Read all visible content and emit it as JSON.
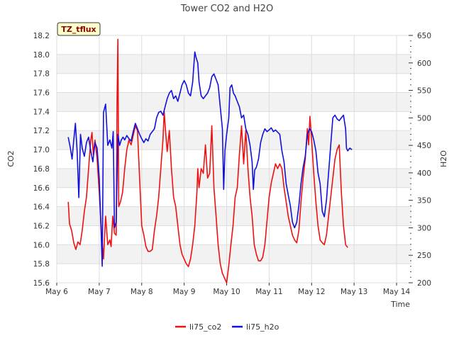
{
  "chart_data": {
    "type": "line",
    "title": "Tower CO2 and H2O",
    "xlabel": "Time",
    "ylabel_left": "CO2",
    "ylabel_right": "H2O",
    "badge": "TZ_tflux",
    "x_range": [
      6.0,
      14.35
    ],
    "ylim_left": [
      15.6,
      18.2
    ],
    "ylim_right": [
      200,
      650
    ],
    "x_ticks": [
      {
        "value": 6,
        "label": "May 6"
      },
      {
        "value": 7,
        "label": "May 7"
      },
      {
        "value": 8,
        "label": "May 8"
      },
      {
        "value": 9,
        "label": "May 9"
      },
      {
        "value": 10,
        "label": "May 10"
      },
      {
        "value": 11,
        "label": "May 11"
      },
      {
        "value": 12,
        "label": "May 12"
      },
      {
        "value": 13,
        "label": "May 13"
      },
      {
        "value": 14,
        "label": "May 14"
      }
    ],
    "y_ticks_left": [
      "15.6",
      "15.8",
      "16.0",
      "16.2",
      "16.4",
      "16.6",
      "16.8",
      "17.0",
      "17.2",
      "17.4",
      "17.6",
      "17.8",
      "18.0",
      "18.2"
    ],
    "y_ticks_right": [
      "200",
      "250",
      "300",
      "350",
      "400",
      "450",
      "500",
      "550",
      "600",
      "650"
    ],
    "grid": true,
    "legend_position": "bottom-center",
    "series": [
      {
        "name": "li75_co2",
        "axis": "left",
        "color": "#ee1111",
        "points": [
          [
            6.27,
            16.45
          ],
          [
            6.3,
            16.22
          ],
          [
            6.35,
            16.15
          ],
          [
            6.4,
            16.02
          ],
          [
            6.45,
            15.95
          ],
          [
            6.5,
            16.03
          ],
          [
            6.55,
            16.0
          ],
          [
            6.6,
            16.15
          ],
          [
            6.65,
            16.35
          ],
          [
            6.7,
            16.5
          ],
          [
            6.75,
            16.8
          ],
          [
            6.8,
            17.1
          ],
          [
            6.83,
            17.18
          ],
          [
            6.86,
            16.95
          ],
          [
            6.9,
            17.1
          ],
          [
            6.95,
            16.9
          ],
          [
            7.0,
            16.55
          ],
          [
            7.05,
            16.15
          ],
          [
            7.1,
            15.85
          ],
          [
            7.15,
            16.3
          ],
          [
            7.2,
            16.0
          ],
          [
            7.25,
            16.05
          ],
          [
            7.28,
            15.98
          ],
          [
            7.32,
            16.3
          ],
          [
            7.36,
            16.12
          ],
          [
            7.4,
            16.1
          ],
          [
            7.42,
            17.5
          ],
          [
            7.44,
            18.16
          ],
          [
            7.46,
            16.4
          ],
          [
            7.5,
            16.45
          ],
          [
            7.55,
            16.55
          ],
          [
            7.6,
            16.8
          ],
          [
            7.65,
            17.0
          ],
          [
            7.7,
            17.1
          ],
          [
            7.75,
            17.05
          ],
          [
            7.8,
            17.15
          ],
          [
            7.85,
            17.25
          ],
          [
            7.9,
            17.2
          ],
          [
            7.93,
            16.9
          ],
          [
            7.97,
            16.5
          ],
          [
            8.0,
            16.2
          ],
          [
            8.05,
            16.1
          ],
          [
            8.1,
            15.98
          ],
          [
            8.15,
            15.93
          ],
          [
            8.2,
            15.93
          ],
          [
            8.25,
            15.95
          ],
          [
            8.3,
            16.15
          ],
          [
            8.35,
            16.3
          ],
          [
            8.4,
            16.5
          ],
          [
            8.45,
            16.8
          ],
          [
            8.5,
            17.1
          ],
          [
            8.53,
            17.4
          ],
          [
            8.56,
            17.2
          ],
          [
            8.6,
            16.98
          ],
          [
            8.65,
            17.2
          ],
          [
            8.7,
            16.8
          ],
          [
            8.75,
            16.5
          ],
          [
            8.8,
            16.4
          ],
          [
            8.85,
            16.2
          ],
          [
            8.9,
            16.0
          ],
          [
            8.95,
            15.9
          ],
          [
            9.0,
            15.85
          ],
          [
            9.05,
            15.8
          ],
          [
            9.1,
            15.77
          ],
          [
            9.15,
            15.85
          ],
          [
            9.2,
            16.0
          ],
          [
            9.25,
            16.2
          ],
          [
            9.3,
            16.55
          ],
          [
            9.32,
            16.8
          ],
          [
            9.35,
            16.6
          ],
          [
            9.4,
            16.8
          ],
          [
            9.45,
            16.75
          ],
          [
            9.5,
            17.05
          ],
          [
            9.55,
            16.7
          ],
          [
            9.6,
            16.75
          ],
          [
            9.65,
            17.25
          ],
          [
            9.7,
            16.6
          ],
          [
            9.75,
            16.3
          ],
          [
            9.8,
            16.0
          ],
          [
            9.85,
            15.8
          ],
          [
            9.9,
            15.7
          ],
          [
            9.95,
            15.65
          ],
          [
            10.0,
            15.6
          ],
          [
            10.05,
            15.78
          ],
          [
            10.1,
            16.0
          ],
          [
            10.15,
            16.2
          ],
          [
            10.2,
            16.5
          ],
          [
            10.25,
            16.6
          ],
          [
            10.3,
            16.95
          ],
          [
            10.35,
            17.25
          ],
          [
            10.4,
            16.85
          ],
          [
            10.45,
            17.2
          ],
          [
            10.5,
            16.8
          ],
          [
            10.55,
            16.5
          ],
          [
            10.6,
            16.3
          ],
          [
            10.65,
            16.0
          ],
          [
            10.7,
            15.9
          ],
          [
            10.75,
            15.83
          ],
          [
            10.8,
            15.83
          ],
          [
            10.85,
            15.87
          ],
          [
            10.9,
            16.0
          ],
          [
            10.95,
            16.25
          ],
          [
            11.0,
            16.5
          ],
          [
            11.05,
            16.65
          ],
          [
            11.1,
            16.75
          ],
          [
            11.15,
            16.85
          ],
          [
            11.2,
            16.8
          ],
          [
            11.25,
            16.85
          ],
          [
            11.3,
            16.8
          ],
          [
            11.35,
            16.6
          ],
          [
            11.4,
            16.45
          ],
          [
            11.45,
            16.3
          ],
          [
            11.5,
            16.2
          ],
          [
            11.55,
            16.1
          ],
          [
            11.6,
            16.05
          ],
          [
            11.65,
            16.02
          ],
          [
            11.7,
            16.15
          ],
          [
            11.75,
            16.45
          ],
          [
            11.8,
            16.7
          ],
          [
            11.85,
            16.9
          ],
          [
            11.9,
            17.22
          ],
          [
            11.93,
            17.05
          ],
          [
            11.96,
            17.35
          ],
          [
            12.0,
            17.1
          ],
          [
            12.05,
            16.75
          ],
          [
            12.1,
            16.45
          ],
          [
            12.15,
            16.2
          ],
          [
            12.2,
            16.05
          ],
          [
            12.25,
            16.02
          ],
          [
            12.3,
            16.0
          ],
          [
            12.35,
            16.1
          ],
          [
            12.4,
            16.3
          ],
          [
            12.45,
            16.5
          ],
          [
            12.5,
            16.7
          ],
          [
            12.55,
            16.9
          ],
          [
            12.6,
            17.0
          ],
          [
            12.65,
            17.05
          ],
          [
            12.7,
            16.55
          ],
          [
            12.75,
            16.2
          ],
          [
            12.8,
            16.0
          ],
          [
            12.85,
            15.97
          ]
        ]
      },
      {
        "name": "li75_h2o",
        "axis": "right",
        "color": "#1111dd",
        "points": [
          [
            6.27,
            465
          ],
          [
            6.32,
            445
          ],
          [
            6.36,
            425
          ],
          [
            6.4,
            460
          ],
          [
            6.44,
            490
          ],
          [
            6.48,
            440
          ],
          [
            6.52,
            355
          ],
          [
            6.56,
            470
          ],
          [
            6.6,
            445
          ],
          [
            6.65,
            430
          ],
          [
            6.7,
            455
          ],
          [
            6.75,
            465
          ],
          [
            6.8,
            440
          ],
          [
            6.85,
            420
          ],
          [
            6.9,
            455
          ],
          [
            6.95,
            445
          ],
          [
            7.0,
            390
          ],
          [
            7.05,
            280
          ],
          [
            7.07,
            230
          ],
          [
            7.1,
            510
          ],
          [
            7.15,
            525
          ],
          [
            7.2,
            450
          ],
          [
            7.25,
            460
          ],
          [
            7.3,
            445
          ],
          [
            7.33,
            475
          ],
          [
            7.36,
            300
          ],
          [
            7.4,
            310
          ],
          [
            7.44,
            470
          ],
          [
            7.48,
            450
          ],
          [
            7.52,
            460
          ],
          [
            7.56,
            465
          ],
          [
            7.6,
            460
          ],
          [
            7.65,
            468
          ],
          [
            7.7,
            462
          ],
          [
            7.75,
            458
          ],
          [
            7.8,
            475
          ],
          [
            7.85,
            490
          ],
          [
            7.9,
            480
          ],
          [
            7.95,
            470
          ],
          [
            8.0,
            462
          ],
          [
            8.05,
            455
          ],
          [
            8.1,
            462
          ],
          [
            8.15,
            458
          ],
          [
            8.2,
            470
          ],
          [
            8.25,
            475
          ],
          [
            8.3,
            480
          ],
          [
            8.35,
            500
          ],
          [
            8.4,
            510
          ],
          [
            8.45,
            512
          ],
          [
            8.5,
            505
          ],
          [
            8.55,
            520
          ],
          [
            8.6,
            535
          ],
          [
            8.65,
            545
          ],
          [
            8.7,
            550
          ],
          [
            8.75,
            535
          ],
          [
            8.8,
            540
          ],
          [
            8.85,
            530
          ],
          [
            8.9,
            545
          ],
          [
            8.95,
            560
          ],
          [
            9.0,
            568
          ],
          [
            9.05,
            560
          ],
          [
            9.1,
            545
          ],
          [
            9.15,
            540
          ],
          [
            9.2,
            565
          ],
          [
            9.25,
            620
          ],
          [
            9.28,
            610
          ],
          [
            9.32,
            600
          ],
          [
            9.35,
            565
          ],
          [
            9.4,
            540
          ],
          [
            9.45,
            535
          ],
          [
            9.5,
            540
          ],
          [
            9.55,
            545
          ],
          [
            9.6,
            555
          ],
          [
            9.65,
            575
          ],
          [
            9.7,
            580
          ],
          [
            9.75,
            570
          ],
          [
            9.8,
            560
          ],
          [
            9.85,
            520
          ],
          [
            9.9,
            480
          ],
          [
            9.93,
            370
          ],
          [
            9.96,
            440
          ],
          [
            10.0,
            470
          ],
          [
            10.05,
            500
          ],
          [
            10.08,
            555
          ],
          [
            10.12,
            560
          ],
          [
            10.16,
            545
          ],
          [
            10.2,
            540
          ],
          [
            10.25,
            530
          ],
          [
            10.3,
            520
          ],
          [
            10.35,
            500
          ],
          [
            10.4,
            505
          ],
          [
            10.45,
            480
          ],
          [
            10.5,
            470
          ],
          [
            10.55,
            450
          ],
          [
            10.6,
            420
          ],
          [
            10.63,
            370
          ],
          [
            10.66,
            405
          ],
          [
            10.7,
            410
          ],
          [
            10.75,
            425
          ],
          [
            10.8,
            455
          ],
          [
            10.85,
            470
          ],
          [
            10.9,
            480
          ],
          [
            10.95,
            475
          ],
          [
            11.0,
            478
          ],
          [
            11.05,
            482
          ],
          [
            11.1,
            475
          ],
          [
            11.15,
            478
          ],
          [
            11.2,
            474
          ],
          [
            11.25,
            470
          ],
          [
            11.3,
            440
          ],
          [
            11.35,
            420
          ],
          [
            11.4,
            380
          ],
          [
            11.45,
            360
          ],
          [
            11.5,
            340
          ],
          [
            11.55,
            310
          ],
          [
            11.6,
            300
          ],
          [
            11.65,
            310
          ],
          [
            11.7,
            340
          ],
          [
            11.75,
            380
          ],
          [
            11.8,
            410
          ],
          [
            11.85,
            430
          ],
          [
            11.9,
            470
          ],
          [
            11.95,
            480
          ],
          [
            12.0,
            475
          ],
          [
            12.05,
            460
          ],
          [
            12.1,
            440
          ],
          [
            12.15,
            400
          ],
          [
            12.2,
            380
          ],
          [
            12.25,
            330
          ],
          [
            12.3,
            320
          ],
          [
            12.35,
            350
          ],
          [
            12.4,
            400
          ],
          [
            12.45,
            450
          ],
          [
            12.5,
            500
          ],
          [
            12.55,
            505
          ],
          [
            12.6,
            498
          ],
          [
            12.65,
            495
          ],
          [
            12.7,
            500
          ],
          [
            12.75,
            505
          ],
          [
            12.8,
            480
          ],
          [
            12.82,
            445
          ],
          [
            12.85,
            440
          ],
          [
            12.9,
            445
          ],
          [
            12.95,
            442
          ]
        ]
      }
    ]
  }
}
